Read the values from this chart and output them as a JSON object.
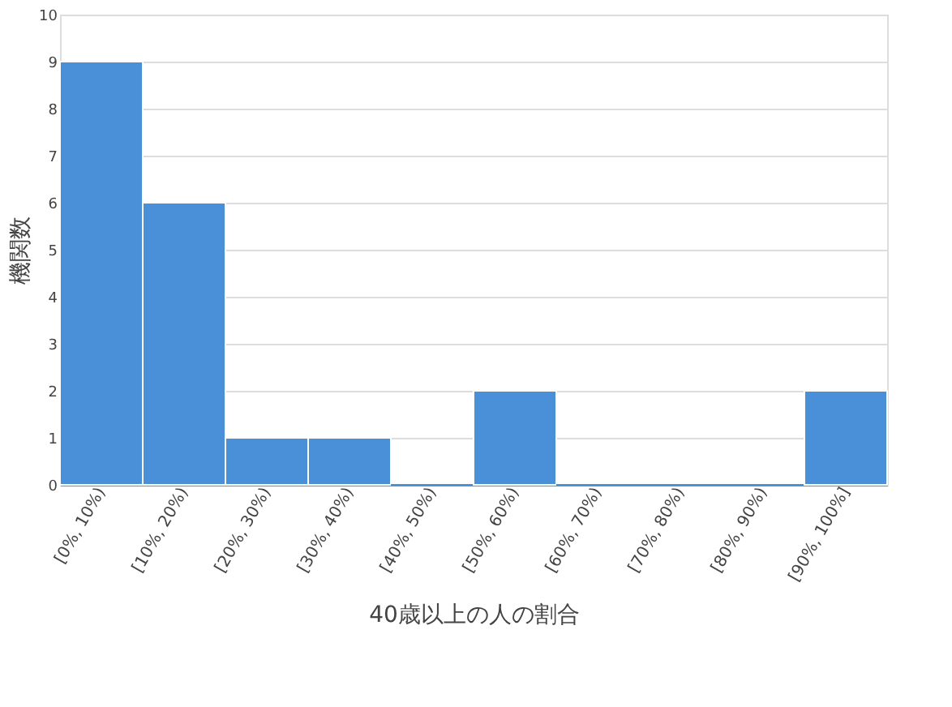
{
  "chart_data": {
    "type": "bar",
    "xlabel": "40歳以上の人の割合",
    "ylabel": "機関数",
    "categories": [
      "[0%, 10%)",
      "[10%, 20%)",
      "[20%, 30%)",
      "[30%, 40%)",
      "[40%, 50%)",
      "[50%, 60%)",
      "[60%, 70%)",
      "[70%, 80%)",
      "[80%, 90%)",
      "[90%, 100%]"
    ],
    "values": [
      9,
      6,
      1,
      1,
      0,
      2,
      0,
      0,
      0,
      2
    ],
    "color": "#4a90d9",
    "ylim": [
      0,
      10
    ],
    "yticks": [
      0,
      1,
      2,
      3,
      4,
      5,
      6,
      7,
      8,
      9,
      10
    ],
    "grid": "y"
  }
}
